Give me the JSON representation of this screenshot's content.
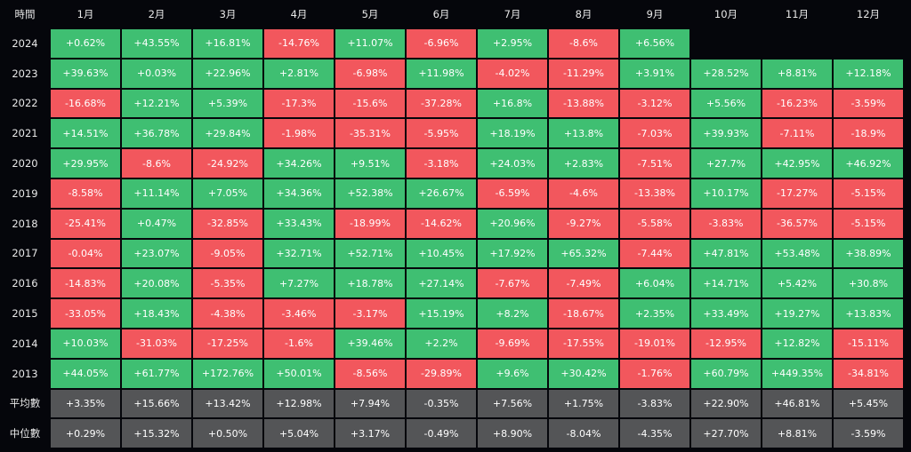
{
  "chart_data": {
    "type": "heatmap",
    "corner_label": "時間",
    "columns": [
      "1月",
      "2月",
      "3月",
      "4月",
      "5月",
      "6月",
      "7月",
      "8月",
      "9月",
      "10月",
      "11月",
      "12月"
    ],
    "rows": [
      {
        "label": "2024",
        "values": [
          "+0.62%",
          "+43.55%",
          "+16.81%",
          "-14.76%",
          "+11.07%",
          "-6.96%",
          "+2.95%",
          "-8.6%",
          "+6.56%",
          "",
          "",
          ""
        ]
      },
      {
        "label": "2023",
        "values": [
          "+39.63%",
          "+0.03%",
          "+22.96%",
          "+2.81%",
          "-6.98%",
          "+11.98%",
          "-4.02%",
          "-11.29%",
          "+3.91%",
          "+28.52%",
          "+8.81%",
          "+12.18%"
        ]
      },
      {
        "label": "2022",
        "values": [
          "-16.68%",
          "+12.21%",
          "+5.39%",
          "-17.3%",
          "-15.6%",
          "-37.28%",
          "+16.8%",
          "-13.88%",
          "-3.12%",
          "+5.56%",
          "-16.23%",
          "-3.59%"
        ]
      },
      {
        "label": "2021",
        "values": [
          "+14.51%",
          "+36.78%",
          "+29.84%",
          "-1.98%",
          "-35.31%",
          "-5.95%",
          "+18.19%",
          "+13.8%",
          "-7.03%",
          "+39.93%",
          "-7.11%",
          "-18.9%"
        ]
      },
      {
        "label": "2020",
        "values": [
          "+29.95%",
          "-8.6%",
          "-24.92%",
          "+34.26%",
          "+9.51%",
          "-3.18%",
          "+24.03%",
          "+2.83%",
          "-7.51%",
          "+27.7%",
          "+42.95%",
          "+46.92%"
        ]
      },
      {
        "label": "2019",
        "values": [
          "-8.58%",
          "+11.14%",
          "+7.05%",
          "+34.36%",
          "+52.38%",
          "+26.67%",
          "-6.59%",
          "-4.6%",
          "-13.38%",
          "+10.17%",
          "-17.27%",
          "-5.15%"
        ]
      },
      {
        "label": "2018",
        "values": [
          "-25.41%",
          "+0.47%",
          "-32.85%",
          "+33.43%",
          "-18.99%",
          "-14.62%",
          "+20.96%",
          "-9.27%",
          "-5.58%",
          "-3.83%",
          "-36.57%",
          "-5.15%"
        ]
      },
      {
        "label": "2017",
        "values": [
          "-0.04%",
          "+23.07%",
          "-9.05%",
          "+32.71%",
          "+52.71%",
          "+10.45%",
          "+17.92%",
          "+65.32%",
          "-7.44%",
          "+47.81%",
          "+53.48%",
          "+38.89%"
        ]
      },
      {
        "label": "2016",
        "values": [
          "-14.83%",
          "+20.08%",
          "-5.35%",
          "+7.27%",
          "+18.78%",
          "+27.14%",
          "-7.67%",
          "-7.49%",
          "+6.04%",
          "+14.71%",
          "+5.42%",
          "+30.8%"
        ]
      },
      {
        "label": "2015",
        "values": [
          "-33.05%",
          "+18.43%",
          "-4.38%",
          "-3.46%",
          "-3.17%",
          "+15.19%",
          "+8.2%",
          "-18.67%",
          "+2.35%",
          "+33.49%",
          "+19.27%",
          "+13.83%"
        ]
      },
      {
        "label": "2014",
        "values": [
          "+10.03%",
          "-31.03%",
          "-17.25%",
          "-1.6%",
          "+39.46%",
          "+2.2%",
          "-9.69%",
          "-17.55%",
          "-19.01%",
          "-12.95%",
          "+12.82%",
          "-15.11%"
        ]
      },
      {
        "label": "2013",
        "values": [
          "+44.05%",
          "+61.77%",
          "+172.76%",
          "+50.01%",
          "-8.56%",
          "-29.89%",
          "+9.6%",
          "+30.42%",
          "-1.76%",
          "+60.79%",
          "+449.35%",
          "-34.81%"
        ]
      }
    ],
    "summary_rows": [
      {
        "label": "平均數",
        "values": [
          "+3.35%",
          "+15.66%",
          "+13.42%",
          "+12.98%",
          "+7.94%",
          "-0.35%",
          "+7.56%",
          "+1.75%",
          "-3.83%",
          "+22.90%",
          "+46.81%",
          "+5.45%"
        ]
      },
      {
        "label": "中位數",
        "values": [
          "+0.29%",
          "+15.32%",
          "+0.50%",
          "+5.04%",
          "+3.17%",
          "-0.49%",
          "+8.90%",
          "-8.04%",
          "-4.35%",
          "+27.70%",
          "+8.81%",
          "-3.59%"
        ]
      }
    ],
    "colors": {
      "positive": "#3fbf72",
      "negative": "#f2575d",
      "summary": "#545557",
      "background": "#05060b"
    }
  }
}
